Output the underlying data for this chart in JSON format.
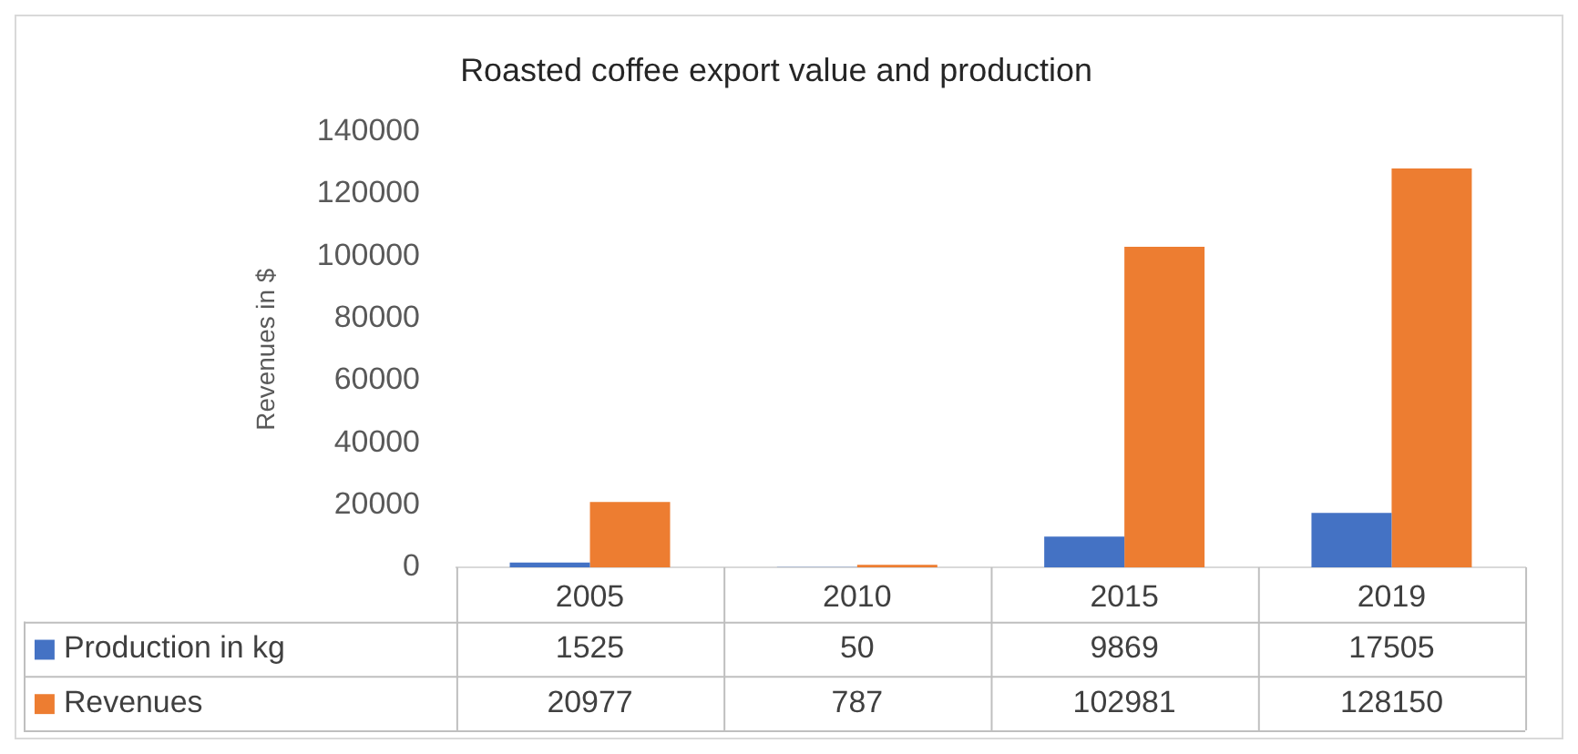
{
  "chart_data": {
    "type": "bar",
    "title": "Roasted coffee export value and production",
    "ylabel": "Revenues in $",
    "categories": [
      "2005",
      "2010",
      "2015",
      "2019"
    ],
    "series": [
      {
        "name": "Production in kg",
        "color": "#4472c4",
        "values": [
          1525,
          50,
          9869,
          17505
        ]
      },
      {
        "name": "Revenues",
        "color": "#ed7d31",
        "values": [
          20977,
          787,
          102981,
          128150
        ]
      }
    ],
    "ylim": [
      0,
      140000
    ],
    "yticks": [
      0,
      20000,
      40000,
      60000,
      80000,
      100000,
      120000,
      140000
    ],
    "grid": false,
    "legend": "bottom",
    "data_labels": true
  }
}
